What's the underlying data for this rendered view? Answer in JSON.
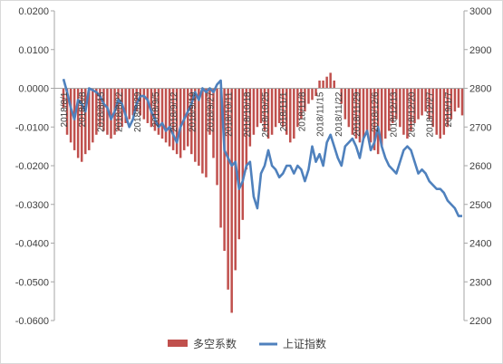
{
  "chart_data": {
    "type": "bar+line",
    "title": "",
    "colors": {
      "bar": "#c0504d",
      "line": "#4f81bd",
      "axis": "#a6a6a6",
      "text": "#404040"
    },
    "left_axis": {
      "ylim": [
        -0.06,
        0.02
      ],
      "ticks": [
        0.02,
        0.01,
        0.0,
        -0.01,
        -0.02,
        -0.03,
        -0.04,
        -0.05,
        -0.06
      ],
      "tick_labels": [
        "0.0200",
        "0.0100",
        "0.0000",
        "-0.0100",
        "-0.0200",
        "-0.0300",
        "-0.0400",
        "-0.0500",
        "-0.0600"
      ]
    },
    "right_axis": {
      "ylim": [
        2200,
        3000
      ],
      "ticks": [
        3000,
        2900,
        2800,
        2700,
        2600,
        2500,
        2400,
        2300,
        2200
      ],
      "tick_labels": [
        "3000",
        "2900",
        "2800",
        "2700",
        "2600",
        "2500",
        "2400",
        "2300",
        "2200"
      ]
    },
    "x_tick_labels": [
      "2018/8/1",
      "2018/8/8",
      "2018/8/15",
      "2018/8/22",
      "2018/8/29",
      "2018/9/5",
      "2018/9/12",
      "2018/9/19",
      "2018/9/27",
      "2018/10/11",
      "2018/10/18",
      "2018/10/25",
      "2018/11/1",
      "2018/11/8",
      "2018/11/15",
      "2018/11/22",
      "2018/11/29",
      "2018/12/6",
      "2018/12/13",
      "2018/12/20",
      "2018/12/27",
      "2019/1/7"
    ],
    "x_tick_index": [
      0,
      5,
      10,
      15,
      20,
      25,
      30,
      35,
      40,
      45,
      50,
      55,
      60,
      65,
      70,
      75,
      80,
      85,
      90,
      95,
      100,
      105
    ],
    "n_points": 110,
    "series": [
      {
        "name": "多空系数",
        "axis": "left",
        "kind": "bar",
        "values": [
          -0.005,
          -0.012,
          -0.014,
          -0.016,
          -0.018,
          -0.019,
          -0.017,
          -0.016,
          -0.014,
          -0.012,
          -0.01,
          -0.011,
          -0.012,
          -0.013,
          -0.012,
          -0.011,
          -0.01,
          -0.009,
          -0.008,
          -0.007,
          -0.006,
          -0.007,
          -0.008,
          -0.009,
          -0.01,
          -0.011,
          -0.012,
          -0.013,
          -0.014,
          -0.015,
          -0.016,
          -0.017,
          -0.018,
          -0.016,
          -0.015,
          -0.017,
          -0.019,
          -0.02,
          -0.022,
          -0.023,
          -0.012,
          -0.018,
          -0.025,
          -0.036,
          -0.042,
          -0.052,
          -0.058,
          -0.047,
          -0.039,
          -0.034,
          -0.021,
          -0.015,
          -0.012,
          -0.01,
          -0.009,
          -0.011,
          -0.013,
          -0.012,
          -0.01,
          -0.009,
          -0.01,
          -0.012,
          -0.014,
          -0.013,
          -0.01,
          -0.008,
          -0.006,
          -0.004,
          -0.003,
          -0.002,
          0.002,
          0.002,
          0.003,
          0.004,
          0.002,
          0.0,
          -0.004,
          -0.008,
          -0.01,
          -0.012,
          -0.013,
          -0.014,
          -0.013,
          -0.012,
          -0.014,
          -0.016,
          -0.017,
          -0.015,
          -0.013,
          -0.011,
          -0.009,
          -0.008,
          -0.01,
          -0.012,
          -0.013,
          -0.011,
          -0.009,
          -0.008,
          -0.007,
          -0.006,
          -0.008,
          -0.01,
          -0.012,
          -0.013,
          -0.012,
          -0.01,
          -0.008,
          -0.006,
          -0.005,
          -0.007
        ]
      },
      {
        "name": "上证指数",
        "axis": "right",
        "kind": "line",
        "values": [
          2824,
          2790,
          2750,
          2720,
          2770,
          2760,
          2740,
          2800,
          2795,
          2790,
          2780,
          2760,
          2750,
          2720,
          2740,
          2770,
          2760,
          2730,
          2700,
          2720,
          2760,
          2780,
          2780,
          2770,
          2740,
          2720,
          2700,
          2710,
          2690,
          2700,
          2680,
          2660,
          2700,
          2720,
          2740,
          2760,
          2790,
          2770,
          2800,
          2790,
          2800,
          2790,
          2810,
          2820,
          2640,
          2620,
          2600,
          2610,
          2540,
          2560,
          2600,
          2610,
          2520,
          2490,
          2580,
          2600,
          2640,
          2600,
          2590,
          2570,
          2580,
          2600,
          2600,
          2580,
          2600,
          2590,
          2560,
          2590,
          2650,
          2610,
          2630,
          2600,
          2660,
          2680,
          2650,
          2620,
          2600,
          2650,
          2660,
          2670,
          2650,
          2620,
          2670,
          2690,
          2640,
          2660,
          2700,
          2650,
          2620,
          2600,
          2590,
          2580,
          2610,
          2640,
          2650,
          2640,
          2610,
          2580,
          2590,
          2580,
          2560,
          2550,
          2540,
          2540,
          2530,
          2510,
          2500,
          2490,
          2470,
          2470
        ]
      }
    ],
    "legend": {
      "position": "bottom",
      "entries": [
        "多空系数",
        "上证指数"
      ]
    }
  }
}
